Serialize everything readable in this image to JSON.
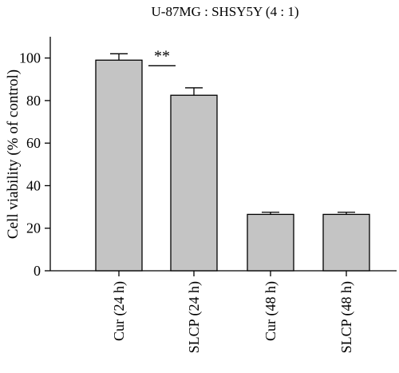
{
  "chart_data": {
    "type": "bar",
    "title": "U-87MG : SHSY5Y (4 : 1)",
    "xlabel": "",
    "ylabel": "Cell viability (% of control)",
    "ylim": [
      0,
      110
    ],
    "yticks": [
      0,
      20,
      40,
      60,
      80,
      100
    ],
    "categories": [
      "Cur (24 h)",
      "SLCP (24 h)",
      "Cur (48 h)",
      "SLCP (48 h)"
    ],
    "values": [
      99,
      82.5,
      26.5,
      26.5
    ],
    "errors": [
      3,
      3.5,
      1,
      1
    ],
    "grid": false,
    "colors": {
      "bar_fill": "#c4c4c4",
      "bar_stroke": "#000000"
    },
    "annotations": [
      {
        "text": "**",
        "between": [
          "Cur (24 h)",
          "SLCP (24 h)"
        ]
      }
    ]
  }
}
